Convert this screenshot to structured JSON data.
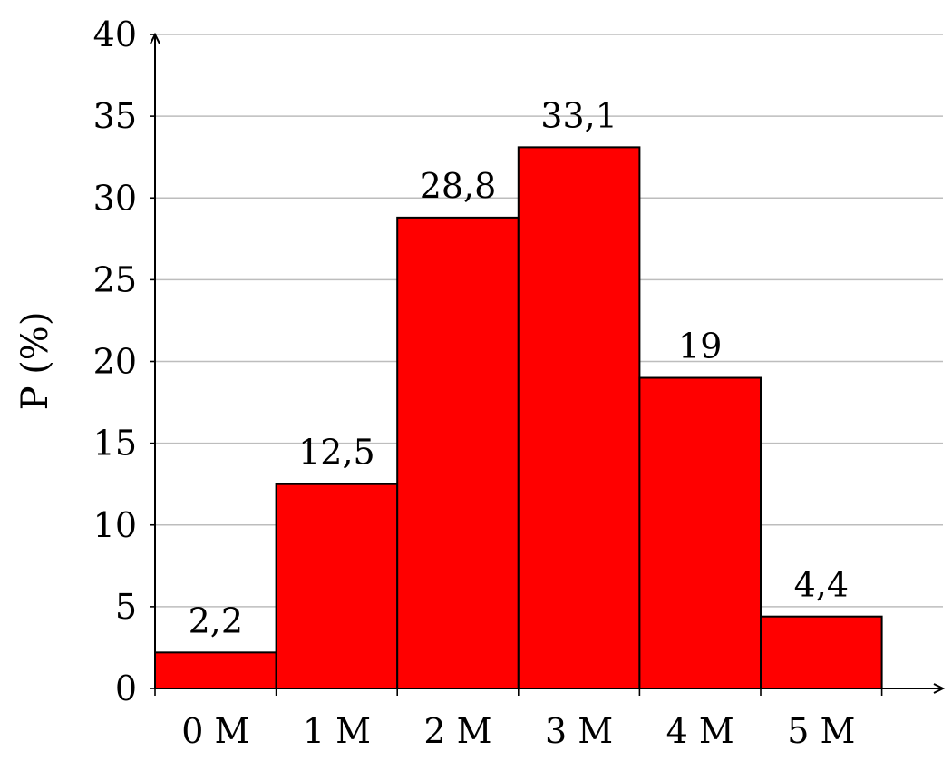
{
  "chart_data": {
    "type": "bar",
    "title": "",
    "xlabel": "",
    "ylabel": "P (%)",
    "categories": [
      "0 M",
      "1 M",
      "2 M",
      "3 M",
      "4 M",
      "5 M"
    ],
    "values": [
      2.2,
      12.5,
      28.8,
      33.1,
      19,
      4.4
    ],
    "value_labels": [
      "2,2",
      "12,5",
      "28,8",
      "33,1",
      "19",
      "4,4"
    ],
    "ylim": [
      0,
      40
    ],
    "yticks": [
      0,
      5,
      10,
      15,
      20,
      25,
      30,
      35,
      40
    ],
    "grid": true,
    "bar_color": "#ff0000"
  }
}
